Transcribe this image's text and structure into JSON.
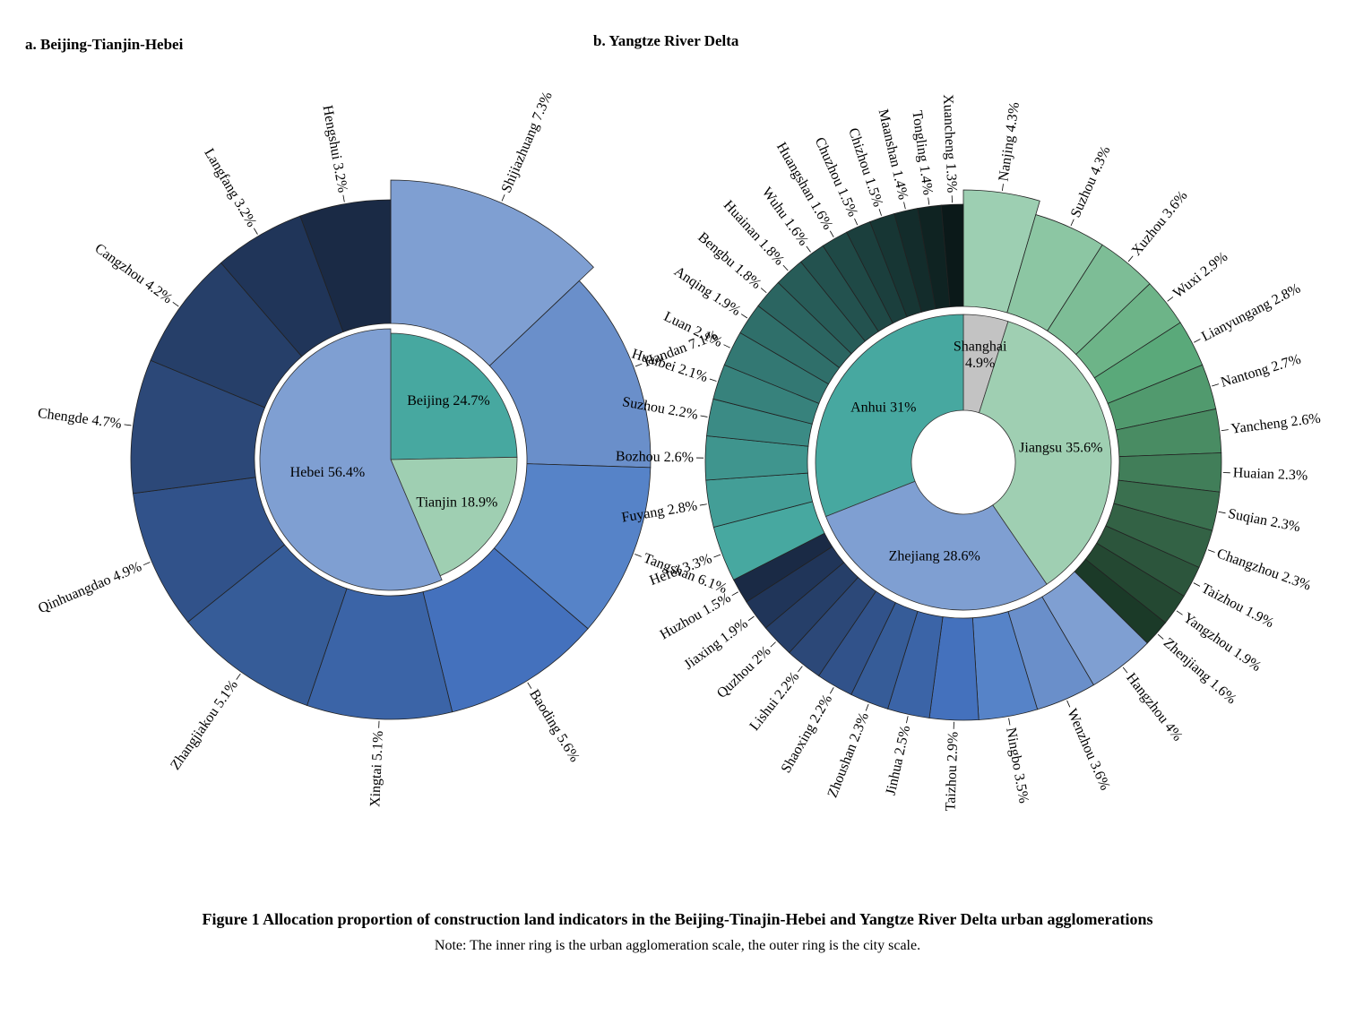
{
  "caption": {
    "title": "Figure 1  Allocation proportion of construction land indicators in the Beijing-Tinajin-Hebei and Yangtze River Delta urban agglomerations",
    "note": "Note: The inner ring is the urban agglomeration scale, the outer ring is the city scale."
  },
  "chart_data": [
    {
      "type": "sunburst",
      "panel_title": "a. Beijing-Tianjin-Hebei",
      "inner": [
        {
          "name": "Beijing",
          "value": 24.7,
          "label": "Beijing 24.7%",
          "color": "#47a8a0"
        },
        {
          "name": "Tianjin",
          "value": 18.9,
          "label": "Tianjin 18.9%",
          "color": "#9fcfb2"
        },
        {
          "name": "Hebei",
          "value": 56.4,
          "label": "Hebei 56.4%",
          "color": "#7f9fd2"
        }
      ],
      "outer": [
        {
          "name": "Shijiazhuang",
          "value": 7.3,
          "label": "Shijiazhuang 7.3%",
          "color": "#7f9fd2"
        },
        {
          "name": "Handan",
          "value": 7.1,
          "label": "Handan 7.1%",
          "color": "#6a8fca"
        },
        {
          "name": "Tangshan",
          "value": 6.1,
          "label": "Tangshan 6.1%",
          "color": "#5683c8"
        },
        {
          "name": "Baoding",
          "value": 5.6,
          "label": "Baoding 5.6%",
          "color": "#4471bd"
        },
        {
          "name": "Xingtai",
          "value": 5.1,
          "label": "Xingtai 5.1%",
          "color": "#3b64a7"
        },
        {
          "name": "Zhangjiakou",
          "value": 5.1,
          "label": "Zhangjiakou 5.1%",
          "color": "#365c98"
        },
        {
          "name": "Qinhuangdao",
          "value": 4.9,
          "label": "Qinhuangdao 4.9%",
          "color": "#31528a"
        },
        {
          "name": "Chengde",
          "value": 4.7,
          "label": "Chengde 4.7%",
          "color": "#2c4878"
        },
        {
          "name": "Cangzhou",
          "value": 4.2,
          "label": "Cangzhou 4.2%",
          "color": "#263f69"
        },
        {
          "name": "Langfang",
          "value": 3.2,
          "label": "Langfang 3.2%",
          "color": "#203559"
        },
        {
          "name": "Hengshui",
          "value": 3.2,
          "label": "Hengshui 3.2%",
          "color": "#1a2a45"
        }
      ]
    },
    {
      "type": "sunburst",
      "panel_title": "b. Yangtze River Delta",
      "inner": [
        {
          "name": "Shanghai",
          "value": 4.9,
          "label": "Shanghai 4.9%",
          "color": "#c3c3c3"
        },
        {
          "name": "Jiangsu",
          "value": 35.6,
          "label": "Jiangsu 35.6%",
          "color": "#9fcfb2"
        },
        {
          "name": "Zhejiang",
          "value": 28.6,
          "label": "Zhejiang 28.6%",
          "color": "#7f9fd2"
        },
        {
          "name": "Anhui",
          "value": 31.0,
          "label": "Anhui 31%",
          "color": "#47a8a0"
        }
      ],
      "outer": [
        {
          "name": "Nanjing",
          "value": 4.3,
          "label": "Nanjing 4.3%",
          "color": "#9dcfb2"
        },
        {
          "name": "Suzhou",
          "value": 4.3,
          "label": "Suzhou 4.3%",
          "color": "#8cc6a3"
        },
        {
          "name": "Xuzhou",
          "value": 3.6,
          "label": "Xuzhou 3.6%",
          "color": "#7dbd96"
        },
        {
          "name": "Wuxi",
          "value": 2.9,
          "label": "Wuxi 2.9%",
          "color": "#6db488"
        },
        {
          "name": "Lianyungang",
          "value": 2.8,
          "label": "Lianyungang 2.8%",
          "color": "#5aa97a"
        },
        {
          "name": "Nantong",
          "value": 2.7,
          "label": "Nantong 2.7%",
          "color": "#519a6e"
        },
        {
          "name": "Yancheng",
          "value": 2.6,
          "label": "Yancheng 2.6%",
          "color": "#498c63"
        },
        {
          "name": "Huaian",
          "value": 2.3,
          "label": "Huaian 2.3%",
          "color": "#417e59"
        },
        {
          "name": "Suqian",
          "value": 2.3,
          "label": "Suqian 2.3%",
          "color": "#3a704f"
        },
        {
          "name": "Changzhou",
          "value": 2.3,
          "label": "Changzhou 2.3%",
          "color": "#336245"
        },
        {
          "name": "Taizhou",
          "value": 1.9,
          "label": "Taizhou 1.9%",
          "color": "#2c553c"
        },
        {
          "name": "Yangzhou",
          "value": 1.9,
          "label": "Yangzhou 1.9%",
          "color": "#244832"
        },
        {
          "name": "Zhenjiang",
          "value": 1.6,
          "label": "Zhenjiang 1.6%",
          "color": "#1b3a28"
        },
        {
          "name": "Hangzhou",
          "value": 4.0,
          "label": "Hangzhou 4%",
          "color": "#7f9fd2"
        },
        {
          "name": "Wenzhou",
          "value": 3.6,
          "label": "Wenzhou 3.6%",
          "color": "#6a8fca"
        },
        {
          "name": "Ningbo",
          "value": 3.5,
          "label": "Ningbo 3.5%",
          "color": "#5683c8"
        },
        {
          "name": "Taizhou",
          "value": 2.9,
          "label": "Taizhou 2.9%",
          "color": "#4471bd"
        },
        {
          "name": "Jinhua",
          "value": 2.5,
          "label": "Jinhua 2.5%",
          "color": "#3b64a7"
        },
        {
          "name": "Zhoushan",
          "value": 2.3,
          "label": "Zhoushan 2.3%",
          "color": "#365c98"
        },
        {
          "name": "Shaoxing",
          "value": 2.2,
          "label": "Shaoxing 2.2%",
          "color": "#31528a"
        },
        {
          "name": "Lishui",
          "value": 2.2,
          "label": "Lishui 2.2%",
          "color": "#2c4878"
        },
        {
          "name": "Quzhou",
          "value": 2.0,
          "label": "Quzhou 2%",
          "color": "#263f69"
        },
        {
          "name": "Jiaxing",
          "value": 1.9,
          "label": "Jiaxing 1.9%",
          "color": "#203559"
        },
        {
          "name": "Huzhou",
          "value": 1.5,
          "label": "Huzhou 1.5%",
          "color": "#1a2a45"
        },
        {
          "name": "Hefei",
          "value": 3.3,
          "label": "Hefei 3.3%",
          "color": "#47a8a0"
        },
        {
          "name": "Fuyang",
          "value": 2.8,
          "label": "Fuyang 2.8%",
          "color": "#439e97"
        },
        {
          "name": "Bozhou",
          "value": 2.6,
          "label": "Bozhou 2.6%",
          "color": "#3f958e"
        },
        {
          "name": "Suzhou",
          "value": 2.2,
          "label": "Suzhou 2.2%",
          "color": "#3b8b85"
        },
        {
          "name": "Huaibei",
          "value": 2.1,
          "label": "Huaibei 2.1%",
          "color": "#37827c"
        },
        {
          "name": "Luan",
          "value": 2.1,
          "label": "Luan 2.1%",
          "color": "#337873"
        },
        {
          "name": "Anqing",
          "value": 1.9,
          "label": "Anqing 1.9%",
          "color": "#2f6f6a"
        },
        {
          "name": "Bengbu",
          "value": 1.8,
          "label": "Bengbu 1.8%",
          "color": "#2b6561"
        },
        {
          "name": "Huainan",
          "value": 1.8,
          "label": "Huainan 1.8%",
          "color": "#275c58"
        },
        {
          "name": "Wuhu",
          "value": 1.6,
          "label": "Wuhu 1.6%",
          "color": "#23524f"
        },
        {
          "name": "Huangshan",
          "value": 1.6,
          "label": "Huangshan 1.6%",
          "color": "#1f4946"
        },
        {
          "name": "Chuzhou",
          "value": 1.5,
          "label": "Chuzhou 1.5%",
          "color": "#1b3f3d"
        },
        {
          "name": "Chizhou",
          "value": 1.5,
          "label": "Chizhou 1.5%",
          "color": "#173634"
        },
        {
          "name": "Maanshan",
          "value": 1.4,
          "label": "Maanshan 1.4%",
          "color": "#132c2b"
        },
        {
          "name": "Tongling",
          "value": 1.4,
          "label": "Tongling 1.4%",
          "color": "#0f2322"
        },
        {
          "name": "Xuancheng",
          "value": 1.3,
          "label": "Xuancheng 1.3%",
          "color": "#0b1919"
        }
      ]
    }
  ]
}
